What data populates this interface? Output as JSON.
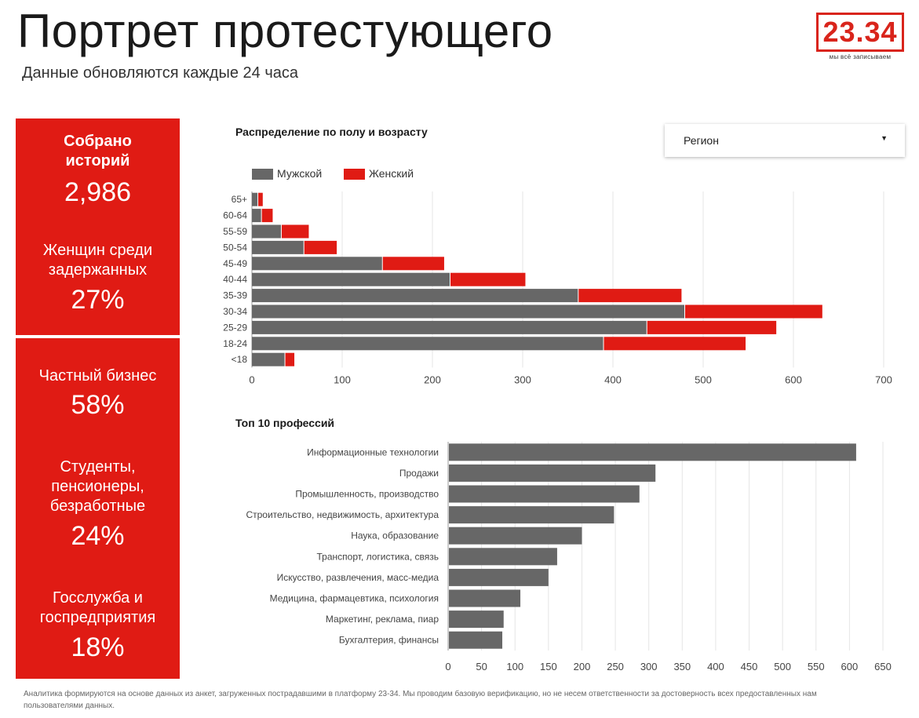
{
  "header": {
    "title": "Портрет протестующего",
    "subtitle": "Данные обновляются каждые 24 часа"
  },
  "logo": {
    "text": "23.34",
    "tagline": "мы всё записываем"
  },
  "stats": [
    {
      "label": "Собрано историй",
      "value": "2,986"
    },
    {
      "label": "Женщин среди задержанных",
      "value": "27%"
    },
    {
      "label": "Частный бизнес",
      "value": "58%"
    },
    {
      "label": "Студенты, пенсионеры, безработные",
      "value": "24%"
    },
    {
      "label": "Госслужба и госпредприятия",
      "value": "18%"
    }
  ],
  "filter": {
    "label": "Регион",
    "caret": "▼"
  },
  "footnote": "Аналитика формируются на основе данных из анкет, загруженных пострадавшими в платформу 23-34. Мы проводим базовую верификацию, но не несем ответственности за достоверность всех предоставленных нам пользователями данных.",
  "colors": {
    "accent": "#e01b14",
    "male": "#676767",
    "female": "#e01b14",
    "grid": "#e6e6e6"
  },
  "chart_data": [
    {
      "type": "bar",
      "orientation": "horizontal",
      "stacked": true,
      "title": "Распределение по полу и возрасту",
      "categories": [
        "65+",
        "60-64",
        "55-59",
        "50-54",
        "45-49",
        "40-44",
        "35-39",
        "30-34",
        "25-29",
        "18-24",
        "<18"
      ],
      "series": [
        {
          "name": "Мужской",
          "color": "#676767",
          "values": [
            7,
            11,
            33,
            58,
            145,
            220,
            362,
            480,
            438,
            390,
            37
          ]
        },
        {
          "name": "Женский",
          "color": "#e01b14",
          "values": [
            5,
            12,
            30,
            36,
            68,
            83,
            114,
            152,
            143,
            157,
            10
          ]
        }
      ],
      "xlim": [
        0,
        700
      ],
      "xticks": [
        0,
        100,
        200,
        300,
        400,
        500,
        600,
        700
      ],
      "legend": "top-left",
      "grid": true
    },
    {
      "type": "bar",
      "orientation": "horizontal",
      "title": "Топ 10 профессий",
      "categories": [
        "Информационные технологии",
        "Продажи",
        "Промышленность, производство",
        "Строительство, недвижимость, архитектура",
        "Наука, образование",
        "Транспорт, логистика, связь",
        "Искусство, развлечения, масс-медиа",
        "Медицина, фармацевтика, психология",
        "Маркетинг, реклама, пиар",
        "Бухгалтерия, финансы"
      ],
      "values": [
        610,
        310,
        286,
        248,
        200,
        163,
        150,
        108,
        83,
        81
      ],
      "xlim": [
        0,
        650
      ],
      "xticks": [
        0,
        50,
        100,
        150,
        200,
        250,
        300,
        350,
        400,
        450,
        500,
        550,
        600,
        650
      ],
      "grid": true
    }
  ]
}
